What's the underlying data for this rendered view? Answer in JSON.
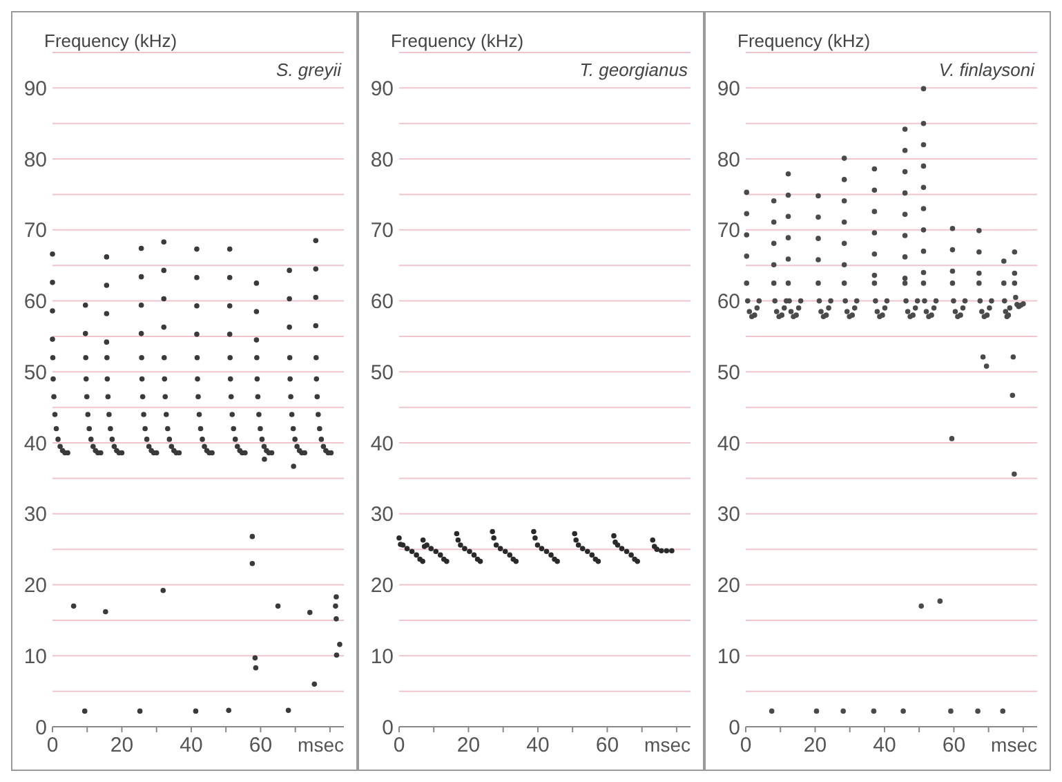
{
  "chart_data": [
    {
      "type": "scatter",
      "title": "S. greyii",
      "ylabel": "Frequency (kHz)",
      "xlabel": "msec",
      "xlim": [
        0,
        84
      ],
      "ylim": [
        0,
        95
      ],
      "xticks": [
        0,
        {
          "value": 10,
          "label": null
        },
        20,
        {
          "value": 30,
          "label": null
        },
        40,
        {
          "value": 50,
          "label": null
        },
        60,
        {
          "value": 70,
          "label": null
        },
        {
          "value": 80,
          "label": null
        }
      ],
      "yticks": [
        0,
        {
          "value": 5,
          "label": null
        },
        10,
        {
          "value": 15,
          "label": null
        },
        20,
        {
          "value": 25,
          "label": null
        },
        30,
        {
          "value": 35,
          "label": null
        },
        40,
        {
          "value": 45,
          "label": null
        },
        50,
        {
          "value": 55,
          "label": null
        },
        60,
        {
          "value": 65,
          "label": null
        },
        70,
        {
          "value": 75,
          "label": null
        },
        80,
        {
          "value": 85,
          "label": null
        },
        90,
        {
          "value": 95,
          "label": null
        }
      ],
      "grid": "y",
      "marker": "circle",
      "series": [
        {
          "color": "#3a3a3a",
          "x": [
            0,
            0,
            0,
            0,
            0.1,
            0.2,
            0.4,
            0.7,
            1.1,
            1.6,
            2.2,
            2.9,
            3.6,
            4.4,
            9.5,
            9.5,
            9.6,
            9.7,
            9.9,
            10.2,
            10.6,
            11.1,
            11.7,
            12.4,
            13.1,
            13.9,
            15.6,
            15.6,
            15.6,
            15.6,
            15.7,
            15.8,
            16.0,
            16.3,
            16.7,
            17.2,
            17.8,
            18.5,
            19.2,
            20.0,
            25.6,
            25.6,
            25.6,
            25.6,
            25.7,
            25.8,
            26.0,
            26.3,
            26.7,
            27.2,
            27.8,
            28.5,
            29.2,
            30.0,
            32.1,
            32.1,
            32.1,
            32.1,
            32.2,
            32.3,
            32.5,
            32.8,
            33.2,
            33.7,
            34.3,
            35.0,
            35.7,
            36.5,
            41.6,
            41.6,
            41.6,
            41.6,
            41.7,
            41.8,
            42.0,
            42.3,
            42.7,
            43.2,
            43.8,
            44.5,
            45.2,
            46.0,
            51.1,
            51.1,
            51.1,
            51.1,
            51.2,
            51.3,
            51.5,
            51.8,
            52.2,
            52.7,
            53.3,
            54.0,
            54.7,
            55.5,
            58.8,
            58.8,
            58.8,
            58.9,
            59.0,
            59.2,
            59.5,
            59.9,
            60.4,
            61.0,
            61.7,
            62.4,
            63.2,
            68.3,
            68.3,
            68.3,
            68.4,
            68.5,
            68.7,
            69.0,
            69.4,
            69.9,
            70.5,
            71.2,
            71.9,
            72.7,
            75.9,
            75.9,
            75.9,
            75.9,
            76.0,
            76.1,
            76.3,
            76.6,
            77.0,
            77.5,
            78.1,
            78.8,
            79.5,
            80.3,
            61.1,
            69.5,
            6.1,
            9.3,
            15.3,
            25.2,
            31.9,
            41.3,
            50.8,
            57.6,
            57.6,
            58.4,
            58.6,
            65.0,
            68.0,
            74.2,
            75.5,
            81.8,
            81.6,
            81.8,
            82.8,
            81.9
          ],
          "values": [
            66.6,
            62.6,
            58.6,
            54.6,
            52,
            49,
            46.5,
            44,
            42,
            40.5,
            39.5,
            38.9,
            38.6,
            38.6,
            59.4,
            55.4,
            52,
            49,
            46.5,
            44,
            42,
            40.5,
            39.5,
            38.9,
            38.6,
            38.6,
            66.2,
            62.2,
            58.2,
            54.2,
            52,
            49,
            46.5,
            44,
            42,
            40.5,
            39.5,
            38.9,
            38.6,
            38.6,
            67.4,
            63.4,
            59.4,
            55.4,
            52,
            49,
            46.5,
            44,
            42,
            40.5,
            39.5,
            38.9,
            38.6,
            38.6,
            68.3,
            64.3,
            60.3,
            56.3,
            52,
            49,
            46.5,
            44,
            42,
            40.5,
            39.5,
            38.9,
            38.6,
            38.6,
            67.3,
            63.3,
            59.3,
            55.3,
            52,
            49,
            46.5,
            44,
            42,
            40.5,
            39.5,
            38.9,
            38.6,
            38.6,
            67.3,
            63.3,
            59.3,
            55.3,
            52,
            49,
            46.5,
            44,
            42,
            40.5,
            39.5,
            38.9,
            38.6,
            38.6,
            62.5,
            58.5,
            54.5,
            52,
            49,
            46.5,
            44,
            42,
            40.5,
            39.5,
            38.9,
            38.6,
            38.6,
            64.3,
            60.3,
            56.3,
            52,
            49,
            46.5,
            44,
            42,
            40.5,
            39.5,
            38.9,
            38.6,
            38.6,
            68.5,
            64.5,
            60.5,
            56.5,
            52,
            49,
            46.5,
            44,
            42,
            40.5,
            39.5,
            38.9,
            38.6,
            38.6,
            37.7,
            36.7,
            17.0,
            2.2,
            16.2,
            2.2,
            19.2,
            2.2,
            2.3,
            26.8,
            23.0,
            9.7,
            8.3,
            17.0,
            2.3,
            16.1,
            6.0,
            18.3,
            17.0,
            15.2,
            11.6,
            10.1
          ]
        }
      ]
    },
    {
      "type": "scatter",
      "title": "T. georgianus",
      "ylabel": "Frequency (kHz)",
      "xlabel": "msec",
      "xlim": [
        0,
        84
      ],
      "ylim": [
        0,
        95
      ],
      "xticks": [
        0,
        {
          "value": 10,
          "label": null
        },
        20,
        {
          "value": 30,
          "label": null
        },
        40,
        {
          "value": 50,
          "label": null
        },
        60,
        {
          "value": 70,
          "label": null
        },
        {
          "value": 80,
          "label": null
        }
      ],
      "yticks": [
        0,
        {
          "value": 5,
          "label": null
        },
        10,
        {
          "value": 15,
          "label": null
        },
        20,
        {
          "value": 25,
          "label": null
        },
        30,
        {
          "value": 35,
          "label": null
        },
        40,
        {
          "value": 45,
          "label": null
        },
        50,
        {
          "value": 55,
          "label": null
        },
        60,
        {
          "value": 65,
          "label": null
        },
        70,
        {
          "value": 75,
          "label": null
        },
        80,
        {
          "value": 85,
          "label": null
        },
        90,
        {
          "value": 95,
          "label": null
        }
      ],
      "grid": "y",
      "marker": "circle",
      "series": [
        {
          "color": "#2a2a2a",
          "x": [
            0,
            0.4,
            1.1,
            2.3,
            3.7,
            5,
            6,
            6.8,
            6.9,
            7.3,
            8,
            9.2,
            10.6,
            11.9,
            12.9,
            13.7,
            16.6,
            17,
            17.7,
            18.9,
            20.3,
            21.6,
            22.6,
            23.4,
            26.9,
            27.3,
            28,
            29.2,
            30.6,
            31.9,
            32.9,
            33.7,
            38.8,
            39.2,
            39.9,
            41.1,
            42.5,
            43.8,
            44.8,
            45.6,
            50.6,
            51,
            51.7,
            52.9,
            54.3,
            55.6,
            56.6,
            57.4,
            61.9,
            62.3,
            63,
            64.2,
            65.6,
            66.9,
            67.9,
            68.7,
            73.1,
            73.6,
            74.3,
            75.6,
            77.1,
            78.6
          ],
          "values": [
            26.6,
            25.7,
            25.6,
            25.1,
            24.7,
            24.2,
            23.6,
            23.3,
            26.3,
            25.4,
            25.6,
            25.1,
            24.7,
            24.2,
            23.6,
            23.3,
            27.2,
            26.3,
            25.6,
            25.1,
            24.7,
            24.2,
            23.6,
            23.3,
            27.5,
            26.6,
            25.6,
            25.1,
            24.7,
            24.2,
            23.6,
            23.3,
            27.5,
            26.6,
            25.6,
            25.1,
            24.7,
            24.2,
            23.6,
            23.3,
            27.2,
            26.3,
            25.6,
            25.1,
            24.7,
            24.2,
            23.6,
            23.3,
            26.9,
            26.0,
            25.6,
            25.1,
            24.7,
            24.2,
            23.6,
            23.3,
            26.3,
            25.4,
            25.0,
            24.8,
            24.8,
            24.8
          ]
        }
      ]
    },
    {
      "type": "scatter",
      "title": "V. finlaysoni",
      "ylabel": "Frequency (kHz)",
      "xlabel": "msec",
      "xlim": [
        0,
        84
      ],
      "ylim": [
        0,
        95
      ],
      "xticks": [
        0,
        {
          "value": 10,
          "label": null
        },
        20,
        {
          "value": 30,
          "label": null
        },
        40,
        {
          "value": 50,
          "label": null
        },
        60,
        {
          "value": 70,
          "label": null
        },
        {
          "value": 80,
          "label": null
        }
      ],
      "yticks": [
        0,
        {
          "value": 5,
          "label": null
        },
        10,
        {
          "value": 15,
          "label": null
        },
        20,
        {
          "value": 25,
          "label": null
        },
        30,
        {
          "value": 35,
          "label": null
        },
        40,
        {
          "value": 45,
          "label": null
        },
        50,
        {
          "value": 55,
          "label": null
        },
        60,
        {
          "value": 65,
          "label": null
        },
        70,
        {
          "value": 75,
          "label": null
        },
        80,
        {
          "value": 85,
          "label": null
        },
        90,
        {
          "value": 95,
          "label": null
        }
      ],
      "grid": "y",
      "marker": "circle",
      "series": [
        {
          "color": "#4a4a4a",
          "x": [
            0.25,
            0.25,
            0.25,
            0.25,
            0.25,
            0.55,
            1.05,
            1.75,
            2.55,
            3.25,
            3.85,
            8.1,
            8.1,
            8.1,
            8.1,
            8.1,
            8.4,
            8.9,
            9.6,
            10.4,
            11.1,
            11.7,
            12.25,
            12.25,
            12.25,
            12.25,
            12.25,
            12.25,
            12.55,
            13.05,
            13.75,
            14.55,
            15.25,
            15.85,
            20.9,
            20.9,
            20.9,
            20.9,
            20.9,
            21.2,
            21.7,
            22.4,
            23.2,
            23.9,
            24.5,
            28.4,
            28.4,
            28.4,
            28.4,
            28.4,
            28.4,
            28.4,
            28.7,
            29.2,
            29.9,
            30.7,
            31.4,
            32.0,
            37.1,
            37.1,
            37.1,
            37.1,
            37.1,
            37.1,
            37.1,
            37.4,
            37.9,
            38.6,
            39.4,
            40.1,
            40.7,
            45.9,
            45.9,
            45.9,
            45.9,
            45.9,
            45.9,
            45.9,
            45.9,
            45.9,
            46.2,
            46.7,
            47.4,
            48.2,
            48.9,
            49.5,
            51.25,
            51.25,
            51.25,
            51.25,
            51.25,
            51.25,
            51.25,
            51.25,
            51.25,
            51.25,
            51.55,
            52.05,
            52.75,
            53.55,
            54.25,
            54.85,
            59.6,
            59.6,
            59.6,
            59.6,
            59.9,
            60.4,
            61.1,
            61.9,
            62.6,
            63.2,
            67.25,
            67.25,
            67.25,
            67.25,
            67.55,
            68.05,
            68.75,
            69.55,
            70.25,
            70.85,
            74.4,
            74.4,
            74.6,
            74.9,
            75.3,
            75.7,
            76.1,
            77.5,
            77.5,
            77.5,
            77.8,
            78.2,
            78.7,
            79.3,
            80.0,
            68.4,
            69.4,
            77.1,
            76.9,
            59.4,
            77.4,
            50.6,
            56.0,
            7.5,
            20.4,
            28.1,
            36.9,
            45.4,
            59.1,
            66.9,
            74.1
          ],
          "values": [
            75.3,
            72.3,
            69.3,
            66.3,
            62.5,
            60,
            58.5,
            57.8,
            58,
            59,
            60,
            74.1,
            71.1,
            68.1,
            65.1,
            62.5,
            60,
            58.5,
            57.8,
            58,
            59,
            60,
            77.9,
            74.9,
            71.9,
            68.9,
            65.9,
            62.5,
            60,
            58.5,
            57.8,
            58,
            59,
            60,
            74.8,
            71.8,
            68.8,
            65.8,
            62.5,
            60,
            58.5,
            57.8,
            58,
            59,
            60,
            80.1,
            77.1,
            74.1,
            71.1,
            68.1,
            65.1,
            62.5,
            60,
            58.5,
            57.8,
            58,
            59,
            60,
            78.6,
            75.6,
            72.6,
            69.6,
            66.6,
            63.6,
            62.5,
            60,
            58.5,
            57.8,
            58,
            59,
            60,
            84.2,
            81.2,
            78.2,
            75.2,
            72.2,
            69.2,
            66.2,
            63.2,
            62.5,
            60,
            58.5,
            57.8,
            58,
            59,
            60,
            89.9,
            85,
            82,
            79,
            76,
            73,
            70,
            67,
            64,
            62.5,
            60,
            58.5,
            57.8,
            58,
            59,
            60,
            70.2,
            67.2,
            64.2,
            62.5,
            60,
            58.5,
            57.8,
            58,
            59,
            60,
            69.9,
            66.9,
            63.9,
            62.5,
            60,
            58.5,
            57.8,
            58,
            59,
            60,
            65.6,
            62.5,
            60,
            58.5,
            57.8,
            58,
            59,
            66.9,
            63.9,
            62.5,
            60.5,
            59.5,
            59.2,
            59.4,
            59.6,
            52.1,
            50.8,
            52.1,
            46.7,
            40.6,
            35.6,
            17.0,
            17.7,
            2.2,
            2.2,
            2.2,
            2.2,
            2.2,
            2.2,
            2.2,
            2.2
          ]
        }
      ]
    }
  ]
}
